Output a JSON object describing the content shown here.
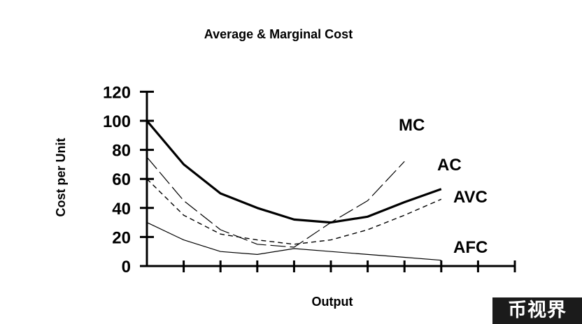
{
  "chart_data": {
    "type": "line",
    "title": "Average & Marginal Cost",
    "xlabel": "Output",
    "ylabel": "Cost per Unit",
    "ylim": [
      0,
      120
    ],
    "yticks": [
      "0",
      "20",
      "40",
      "60",
      "80",
      "100",
      "120"
    ],
    "x": [
      0,
      1,
      2,
      3,
      4,
      5,
      6,
      7,
      8,
      9,
      10
    ],
    "xlim": [
      0,
      10
    ],
    "grid": false,
    "series": [
      {
        "name": "AC",
        "style": "thick-solid",
        "values": [
          100,
          70,
          50,
          40,
          32,
          30,
          34,
          44,
          53,
          null,
          null
        ]
      },
      {
        "name": "AVC",
        "style": "dashed",
        "values": [
          60,
          35,
          22,
          18,
          15,
          18,
          25,
          35,
          46,
          null,
          null
        ]
      },
      {
        "name": "AFC",
        "style": "thin-solid",
        "values": [
          30,
          18,
          10,
          8,
          12,
          10,
          8,
          6,
          4,
          null,
          null
        ]
      },
      {
        "name": "MC",
        "style": "long-dash",
        "values": [
          75,
          45,
          25,
          15,
          13,
          30,
          45,
          72,
          null,
          null,
          null
        ]
      }
    ]
  },
  "watermark": "币视界"
}
